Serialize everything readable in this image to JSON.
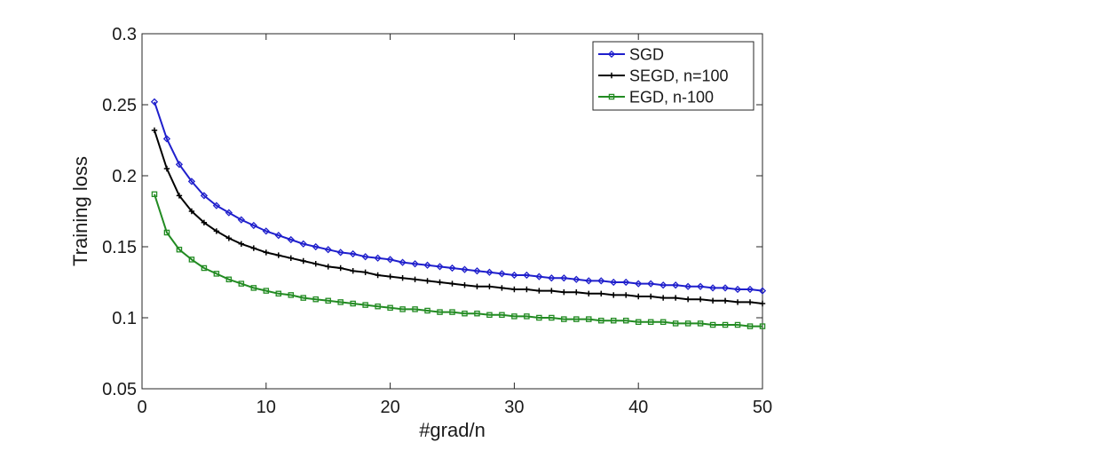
{
  "chart_data": {
    "type": "line",
    "title": "",
    "xlabel": "#grad/n",
    "ylabel": "Training loss",
    "xlim": [
      0,
      50
    ],
    "ylim": [
      0.05,
      0.3
    ],
    "xticks": [
      0,
      10,
      20,
      30,
      40,
      50
    ],
    "xtick_labels": [
      "0",
      "10",
      "20",
      "30",
      "40",
      "50"
    ],
    "yticks": [
      0.05,
      0.1,
      0.15,
      0.2,
      0.25,
      0.3
    ],
    "ytick_labels": [
      "0.05",
      "0.1",
      "0.15",
      "0.2",
      "0.25",
      "0.3"
    ],
    "grid": false,
    "legend_position": "top-right",
    "x": [
      1,
      2,
      3,
      4,
      5,
      6,
      7,
      8,
      9,
      10,
      11,
      12,
      13,
      14,
      15,
      16,
      17,
      18,
      19,
      20,
      21,
      22,
      23,
      24,
      25,
      26,
      27,
      28,
      29,
      30,
      31,
      32,
      33,
      34,
      35,
      36,
      37,
      38,
      39,
      40,
      41,
      42,
      43,
      44,
      45,
      46,
      47,
      48,
      49,
      50
    ],
    "series": [
      {
        "name": "SGD",
        "color": "#1f1fcc",
        "marker": "diamond",
        "values": [
          0.252,
          0.226,
          0.208,
          0.196,
          0.186,
          0.179,
          0.174,
          0.169,
          0.165,
          0.161,
          0.158,
          0.155,
          0.152,
          0.15,
          0.148,
          0.146,
          0.145,
          0.143,
          0.142,
          0.141,
          0.139,
          0.138,
          0.137,
          0.136,
          0.135,
          0.134,
          0.133,
          0.132,
          0.131,
          0.13,
          0.13,
          0.129,
          0.128,
          0.128,
          0.127,
          0.126,
          0.126,
          0.125,
          0.125,
          0.124,
          0.124,
          0.123,
          0.123,
          0.122,
          0.122,
          0.121,
          0.121,
          0.12,
          0.12,
          0.119
        ]
      },
      {
        "name": "SEGD, n=100",
        "color": "#000000",
        "marker": "plus",
        "values": [
          0.232,
          0.205,
          0.186,
          0.175,
          0.167,
          0.161,
          0.156,
          0.152,
          0.149,
          0.146,
          0.144,
          0.142,
          0.14,
          0.138,
          0.136,
          0.135,
          0.133,
          0.132,
          0.13,
          0.129,
          0.128,
          0.127,
          0.126,
          0.125,
          0.124,
          0.123,
          0.122,
          0.122,
          0.121,
          0.12,
          0.12,
          0.119,
          0.119,
          0.118,
          0.118,
          0.117,
          0.117,
          0.116,
          0.116,
          0.115,
          0.115,
          0.114,
          0.114,
          0.113,
          0.113,
          0.112,
          0.112,
          0.111,
          0.111,
          0.11
        ]
      },
      {
        "name": "EGD, n-100",
        "color": "#228b22",
        "marker": "square",
        "values": [
          0.187,
          0.16,
          0.148,
          0.141,
          0.135,
          0.131,
          0.127,
          0.124,
          0.121,
          0.119,
          0.117,
          0.116,
          0.114,
          0.113,
          0.112,
          0.111,
          0.11,
          0.109,
          0.108,
          0.107,
          0.106,
          0.106,
          0.105,
          0.104,
          0.104,
          0.103,
          0.103,
          0.102,
          0.102,
          0.101,
          0.101,
          0.1,
          0.1,
          0.099,
          0.099,
          0.099,
          0.098,
          0.098,
          0.098,
          0.097,
          0.097,
          0.097,
          0.096,
          0.096,
          0.096,
          0.095,
          0.095,
          0.095,
          0.094,
          0.094
        ]
      }
    ]
  }
}
